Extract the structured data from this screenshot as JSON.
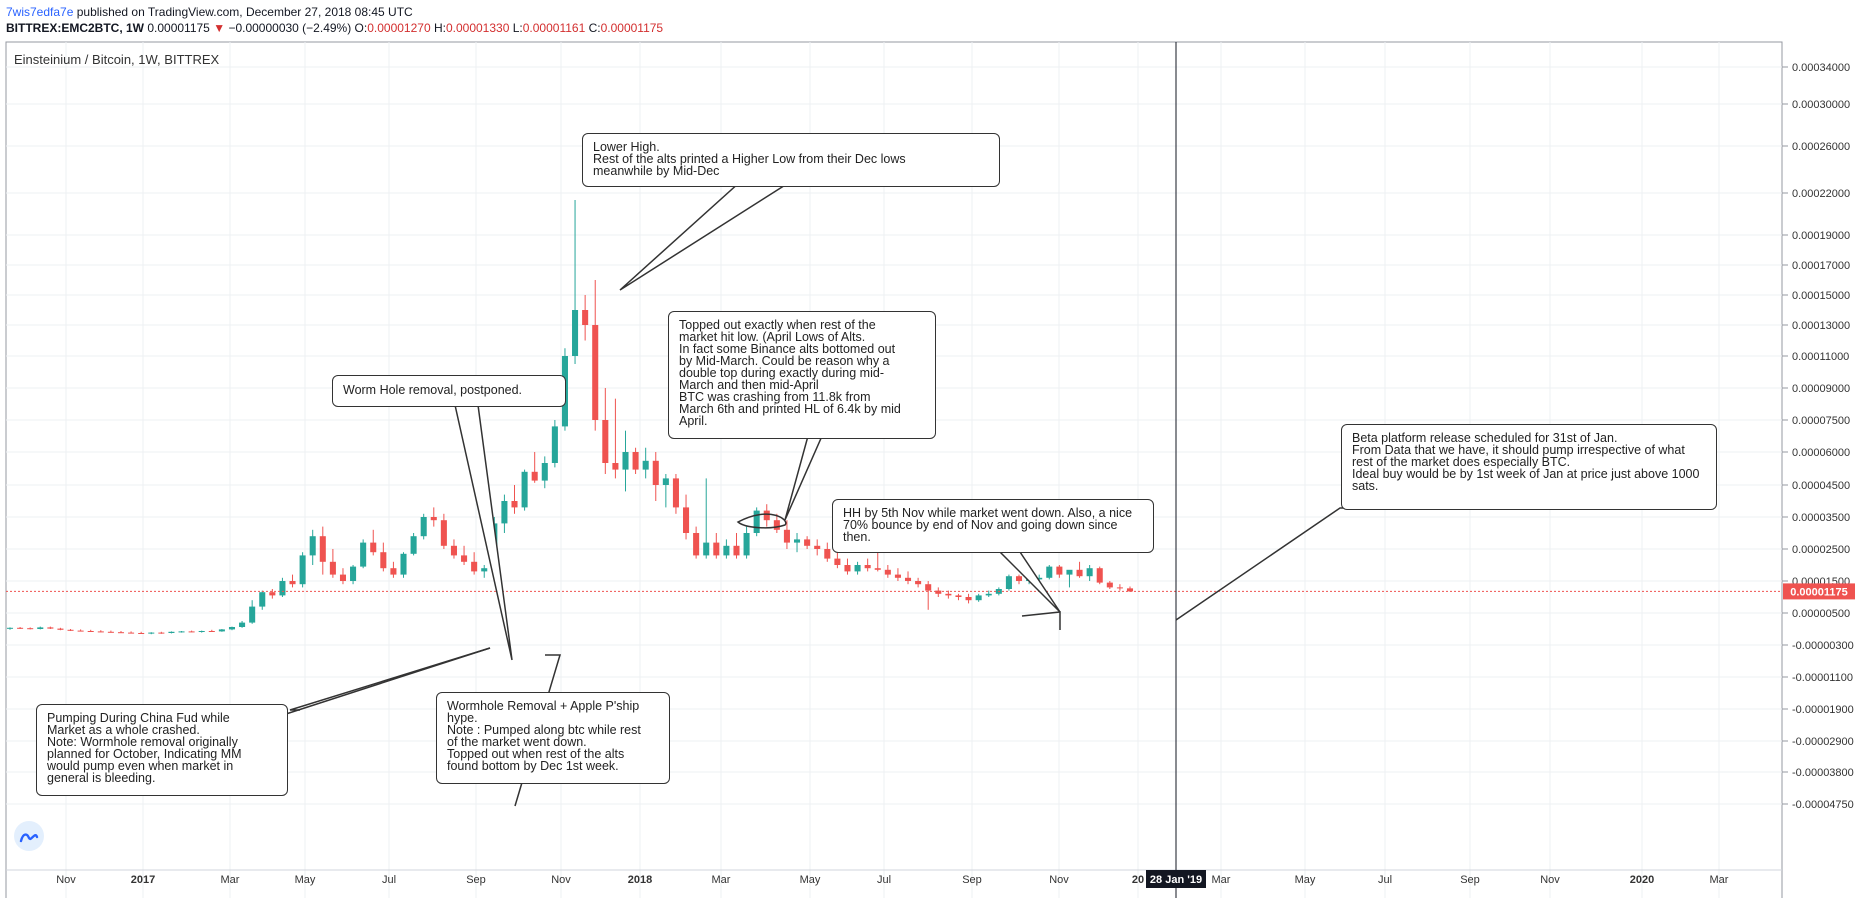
{
  "header": {
    "user": "7wis7edfa7e",
    "published": " published on TradingView.com, December 27, 2018 08:45 UTC",
    "symbol": "BITTREX:EMC2BTC, 1W",
    "price": "0.00001175",
    "change_arrow": "▼",
    "change": "−0.00000030 (−2.49%)",
    "o_label": "O:",
    "o_value": "0.00001270",
    "h_label": "H:",
    "h_value": "0.00001330",
    "l_label": "L:",
    "l_value": "0.00001161",
    "c_label": "C:",
    "c_value": "0.00001175"
  },
  "chart_data": {
    "type": "candlestick",
    "title": "Einsteinium / Bitcoin, 1W, BITTREX",
    "y_ticks": [
      "0.00034000",
      "0.00030000",
      "0.00026000",
      "0.00022000",
      "0.00019000",
      "0.00017000",
      "0.00015000",
      "0.00013000",
      "0.00011000",
      "0.00009000",
      "0.00007500",
      "0.00006000",
      "0.00004500",
      "0.00003500",
      "0.00002500",
      "0.00001500",
      "0.00000500",
      "-0.00000300",
      "-0.00001100",
      "-0.00001900",
      "-0.00002900",
      "-0.00003800",
      "-0.00004750"
    ],
    "x_ticks": [
      {
        "label": "Nov",
        "bold": false
      },
      {
        "label": "2017",
        "bold": true
      },
      {
        "label": "Mar",
        "bold": false
      },
      {
        "label": "May",
        "bold": false
      },
      {
        "label": "Jul",
        "bold": false
      },
      {
        "label": "Sep",
        "bold": false
      },
      {
        "label": "Nov",
        "bold": false
      },
      {
        "label": "2018",
        "bold": true
      },
      {
        "label": "Mar",
        "bold": false
      },
      {
        "label": "May",
        "bold": false
      },
      {
        "label": "Jul",
        "bold": false
      },
      {
        "label": "Sep",
        "bold": false
      },
      {
        "label": "Nov",
        "bold": false
      },
      {
        "label": "20",
        "bold": true
      },
      {
        "label": "Mar",
        "bold": false
      },
      {
        "label": "May",
        "bold": false
      },
      {
        "label": "Jul",
        "bold": false
      },
      {
        "label": "Sep",
        "bold": false
      },
      {
        "label": "Nov",
        "bold": false
      },
      {
        "label": "2020",
        "bold": true
      },
      {
        "label": "Mar",
        "bold": false
      }
    ],
    "current_price_label": "0.00001175",
    "cursor_date_label": "28 Jan '19",
    "up_color": "#26a69a",
    "down_color": "#ef5350",
    "candles": [
      [
        1.1e-06,
        1.4e-06,
        8e-07,
        1.3e-06
      ],
      [
        1.3e-06,
        1.5e-06,
        1e-06,
        1.2e-06
      ],
      [
        1.2e-06,
        1.4e-06,
        9e-07,
        1e-06
      ],
      [
        1e-06,
        1.6e-06,
        9e-07,
        1.4e-06
      ],
      [
        1.4e-06,
        1.6e-06,
        1e-06,
        1.1e-06
      ],
      [
        1.1e-06,
        1.3e-06,
        7e-07,
        8e-07
      ],
      [
        8e-07,
        1e-06,
        5e-07,
        6e-07
      ],
      [
        6e-07,
        9e-07,
        4e-07,
        5e-07
      ],
      [
        5e-07,
        8e-07,
        3e-07,
        4e-07
      ],
      [
        4e-07,
        7e-07,
        2e-07,
        3e-07
      ],
      [
        3e-07,
        6e-07,
        1e-07,
        2e-07
      ],
      [
        2e-07,
        5e-07,
        0.0,
        1e-07
      ],
      [
        1e-07,
        4e-07,
        -1e-07,
        0.0
      ],
      [
        0.0,
        3e-07,
        -2e-07,
        -1e-07
      ],
      [
        -1e-07,
        2e-07,
        -3e-07,
        1e-07
      ],
      [
        1e-07,
        3e-07,
        -2e-07,
        0.0
      ],
      [
        0.0,
        4e-07,
        -1e-07,
        3e-07
      ],
      [
        3e-07,
        5e-07,
        1e-07,
        4e-07
      ],
      [
        4e-07,
        6e-07,
        2e-07,
        3e-07
      ],
      [
        3e-07,
        6e-07,
        1e-07,
        5e-07
      ],
      [
        5e-07,
        8e-07,
        3e-07,
        4e-07
      ],
      [
        4e-07,
        1e-06,
        3e-07,
        9e-07
      ],
      [
        9e-07,
        1.6e-06,
        7e-07,
        1.5e-06
      ],
      [
        1.5e-06,
        3e-06,
        1.3e-06,
        2.6e-06
      ],
      [
        2.6e-06,
        9e-06,
        2.3e-06,
        7e-06
      ],
      [
        7e-06,
        1.2e-05,
        6e-06,
        1.15e-05
      ],
      [
        1.15e-05,
        1.25e-05,
        9.5e-06,
        1.05e-05
      ],
      [
        1.05e-05,
        1.6e-05,
        1e-05,
        1.5e-05
      ],
      [
        1.5e-05,
        1.7e-05,
        1.3e-05,
        1.4e-05
      ],
      [
        1.4e-05,
        2.4e-05,
        1.3e-05,
        2.3e-05
      ],
      [
        2.3e-05,
        3.1e-05,
        2e-05,
        2.9e-05
      ],
      [
        2.9e-05,
        3.2e-05,
        1.7e-05,
        2.1e-05
      ],
      [
        2.1e-05,
        2.5e-05,
        1.6e-05,
        1.7e-05
      ],
      [
        1.7e-05,
        1.9e-05,
        1.4e-05,
        1.5e-05
      ],
      [
        1.5e-05,
        2e-05,
        1.4e-05,
        1.95e-05
      ],
      [
        1.95e-05,
        2.8e-05,
        1.9e-05,
        2.7e-05
      ],
      [
        2.7e-05,
        3.1e-05,
        2.3e-05,
        2.4e-05
      ],
      [
        2.4e-05,
        2.7e-05,
        1.8e-05,
        1.9e-05
      ],
      [
        1.9e-05,
        2.1e-05,
        1.6e-05,
        1.7e-05
      ],
      [
        1.7e-05,
        2.4e-05,
        1.6e-05,
        2.35e-05
      ],
      [
        2.35e-05,
        3e-05,
        2.3e-05,
        2.9e-05
      ],
      [
        2.9e-05,
        3.6e-05,
        2.8e-05,
        3.5e-05
      ],
      [
        3.5e-05,
        3.8e-05,
        3.2e-05,
        3.4e-05
      ],
      [
        3.4e-05,
        3.6e-05,
        2.5e-05,
        2.6e-05
      ],
      [
        2.6e-05,
        2.8e-05,
        2.2e-05,
        2.3e-05
      ],
      [
        2.3e-05,
        2.6e-05,
        2e-05,
        2.1e-05
      ],
      [
        2.1e-05,
        2.4e-05,
        1.7e-05,
        1.8e-05
      ],
      [
        1.8e-05,
        2e-05,
        1.6e-05,
        1.9e-05
      ],
      [
        1.9e-05,
        3.5e-05,
        1.8e-05,
        3.3e-05
      ],
      [
        3.3e-05,
        4.2e-05,
        3e-05,
        4e-05
      ],
      [
        4e-05,
        4.5e-05,
        3.6e-05,
        3.8e-05
      ],
      [
        3.8e-05,
        5.2e-05,
        3.7e-05,
        5.1e-05
      ],
      [
        5.1e-05,
        6e-05,
        4.6e-05,
        4.7e-05
      ],
      [
        4.7e-05,
        5.8e-05,
        4.4e-05,
        5.5e-05
      ],
      [
        5.5e-05,
        7.5e-05,
        5.3e-05,
        7.2e-05
      ],
      [
        7.2e-05,
        0.000115,
        7e-05,
        0.00011
      ],
      [
        0.00011,
        0.000215,
        0.000105,
        0.00014
      ],
      [
        0.00014,
        0.00015,
        0.00012,
        0.00013
      ],
      [
        0.00013,
        0.00016,
        7e-05,
        7.5e-05
      ],
      [
        7.5e-05,
        9e-05,
        5e-05,
        5.5e-05
      ],
      [
        5.5e-05,
        8.5e-05,
        4.8e-05,
        5.2e-05
      ],
      [
        5.2e-05,
        7e-05,
        4.3e-05,
        6e-05
      ],
      [
        6e-05,
        6.2e-05,
        5e-05,
        5.2e-05
      ],
      [
        5.2e-05,
        6.2e-05,
        4.8e-05,
        5.6e-05
      ],
      [
        5.6e-05,
        6e-05,
        4e-05,
        4.5e-05
      ],
      [
        4.5e-05,
        5e-05,
        3.8e-05,
        4.8e-05
      ],
      [
        4.8e-05,
        5e-05,
        3.6e-05,
        3.8e-05
      ],
      [
        3.8e-05,
        4.2e-05,
        2.8e-05,
        3e-05
      ],
      [
        3e-05,
        3.2e-05,
        2.2e-05,
        2.3e-05
      ],
      [
        2.3e-05,
        4.8e-05,
        2.2e-05,
        2.7e-05
      ],
      [
        2.7e-05,
        3e-05,
        2.2e-05,
        2.3e-05
      ],
      [
        2.3e-05,
        2.8e-05,
        2.2e-05,
        2.6e-05
      ],
      [
        2.6e-05,
        3e-05,
        2.2e-05,
        2.3e-05
      ],
      [
        2.3e-05,
        3.2e-05,
        2.2e-05,
        3e-05
      ],
      [
        3e-05,
        3.8e-05,
        2.9e-05,
        3.7e-05
      ],
      [
        3.7e-05,
        3.9e-05,
        3.2e-05,
        3.4e-05
      ],
      [
        3.4e-05,
        3.6e-05,
        3e-05,
        3.1e-05
      ],
      [
        3.1e-05,
        3.4e-05,
        2.5e-05,
        2.7e-05
      ],
      [
        2.7e-05,
        3e-05,
        2.4e-05,
        2.8e-05
      ],
      [
        2.8e-05,
        2.9e-05,
        2.5e-05,
        2.6e-05
      ],
      [
        2.6e-05,
        2.8e-05,
        2.3e-05,
        2.5e-05
      ],
      [
        2.5e-05,
        2.7e-05,
        2.1e-05,
        2.2e-05
      ],
      [
        2.2e-05,
        2.4e-05,
        1.9e-05,
        2e-05
      ],
      [
        2e-05,
        2.2e-05,
        1.7e-05,
        1.8e-05
      ],
      [
        1.8e-05,
        2.1e-05,
        1.7e-05,
        2e-05
      ],
      [
        2e-05,
        2.2e-05,
        1.8e-05,
        1.9e-05
      ],
      [
        1.9e-05,
        2.5e-05,
        1.8e-05,
        1.85e-05
      ],
      [
        1.85e-05,
        2e-05,
        1.6e-05,
        1.7e-05
      ],
      [
        1.7e-05,
        1.9e-05,
        1.5e-05,
        1.6e-05
      ],
      [
        1.6e-05,
        1.8e-05,
        1.4e-05,
        1.5e-05
      ],
      [
        1.5e-05,
        1.6e-05,
        1.3e-05,
        1.4e-05
      ],
      [
        1.4e-05,
        1.5e-05,
        6e-06,
        1.2e-05
      ],
      [
        1.2e-05,
        1.3e-05,
        1e-05,
        1.1e-05
      ],
      [
        1.1e-05,
        1.2e-05,
        9.5e-06,
        1.05e-05
      ],
      [
        1.05e-05,
        1.1e-05,
        9e-06,
        1e-05
      ],
      [
        1e-05,
        1.1e-05,
        8e-06,
        9e-06
      ],
      [
        9e-06,
        1.1e-05,
        8.5e-06,
        1.05e-05
      ],
      [
        1.05e-05,
        1.2e-05,
        1e-05,
        1.1e-05
      ],
      [
        1.1e-05,
        1.3e-05,
        1.05e-05,
        1.25e-05
      ],
      [
        1.25e-05,
        1.7e-05,
        1.2e-05,
        1.65e-05
      ],
      [
        1.65e-05,
        1.7e-05,
        1.4e-05,
        1.5e-05
      ],
      [
        1.5e-05,
        1.6e-05,
        1.4e-05,
        1.55e-05
      ],
      [
        1.55e-05,
        1.7e-05,
        1.5e-05,
        1.6e-05
      ],
      [
        1.6e-05,
        2e-05,
        1.55e-05,
        1.95e-05
      ],
      [
        1.95e-05,
        2e-05,
        1.6e-05,
        1.7e-05
      ],
      [
        1.7e-05,
        1.8e-05,
        1.3e-05,
        1.85e-05
      ],
      [
        1.85e-05,
        2.1e-05,
        1.6e-05,
        1.65e-05
      ],
      [
        1.65e-05,
        2e-05,
        1.5e-05,
        1.9e-05
      ],
      [
        1.9e-05,
        1.95e-05,
        1.4e-05,
        1.45e-05
      ],
      [
        1.45e-05,
        1.5e-05,
        1.25e-05,
        1.3e-05
      ],
      [
        1.3e-05,
        1.4e-05,
        1.2e-05,
        1.27e-05
      ],
      [
        1.27e-05,
        1.33e-05,
        1.16e-05,
        1.175e-05
      ]
    ]
  },
  "annotations": [
    {
      "text": "Lower High.\nRest of the alts printed a Higher Low from their Dec lows\nmeanwhile by Mid-Dec"
    },
    {
      "text": "Topped out exactly when rest of the\nmarket hit low. (April Lows of Alts.\nIn fact some Binance alts bottomed out\nby Mid-March. Could be reason why a\ndouble top during exactly during mid-\nMarch and then mid-April\nBTC was crashing from 11.8k from\nMarch 6th and printed HL of 6.4k by mid\nApril."
    },
    {
      "text": "Worm Hole removal, postponed."
    },
    {
      "text": "Beta platform release scheduled for 31st of Jan.\nFrom Data that we have, it should pump irrespective of what\nrest of the market does especially BTC.\nIdeal buy would be by 1st week of Jan at price just above 1000\nsats."
    },
    {
      "text": "HH by 5th Nov while market went down. Also, a nice\n70% bounce by end of Nov and going down since\nthen."
    },
    {
      "text": "Pumping During China Fud while\nMarket as a whole crashed.\nNote: Wormhole removal originally\nplanned for October, Indicating MM\nwould pump even when market in\ngeneral is bleeding."
    },
    {
      "text": "Wormhole Removal + Apple P'ship\nhype.\nNote : Pumped along btc while rest\nof the market went down.\nTopped out when rest of the alts\nfound bottom by Dec 1st week."
    }
  ]
}
